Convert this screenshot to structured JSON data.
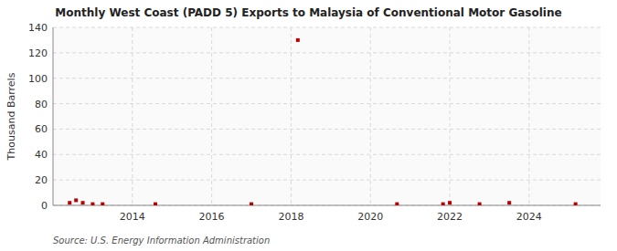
{
  "chart_data": {
    "type": "scatter",
    "title": "Monthly West Coast (PADD 5) Exports to Malaysia of Conventional Motor Gasoline",
    "ylabel": "Thousand Barrels",
    "source": "Source: U.S. Energy Information Administration",
    "x": [
      2012.42,
      2012.58,
      2012.75,
      2013.0,
      2013.25,
      2014.58,
      2017.0,
      2018.17,
      2020.67,
      2021.83,
      2022.0,
      2022.75,
      2023.5,
      2025.17
    ],
    "values": [
      2,
      4,
      2,
      1,
      1,
      1,
      1,
      130,
      1,
      1,
      2,
      1,
      2,
      1
    ],
    "color": "#bb0000",
    "marker": "square",
    "xlim": [
      2012.0,
      2025.8
    ],
    "xticks": [
      2014,
      2016,
      2018,
      2020,
      2022,
      2024
    ],
    "ylim": [
      0,
      140
    ],
    "yticks": [
      0,
      20,
      40,
      60,
      80,
      100,
      120,
      140
    ],
    "grid": true
  }
}
